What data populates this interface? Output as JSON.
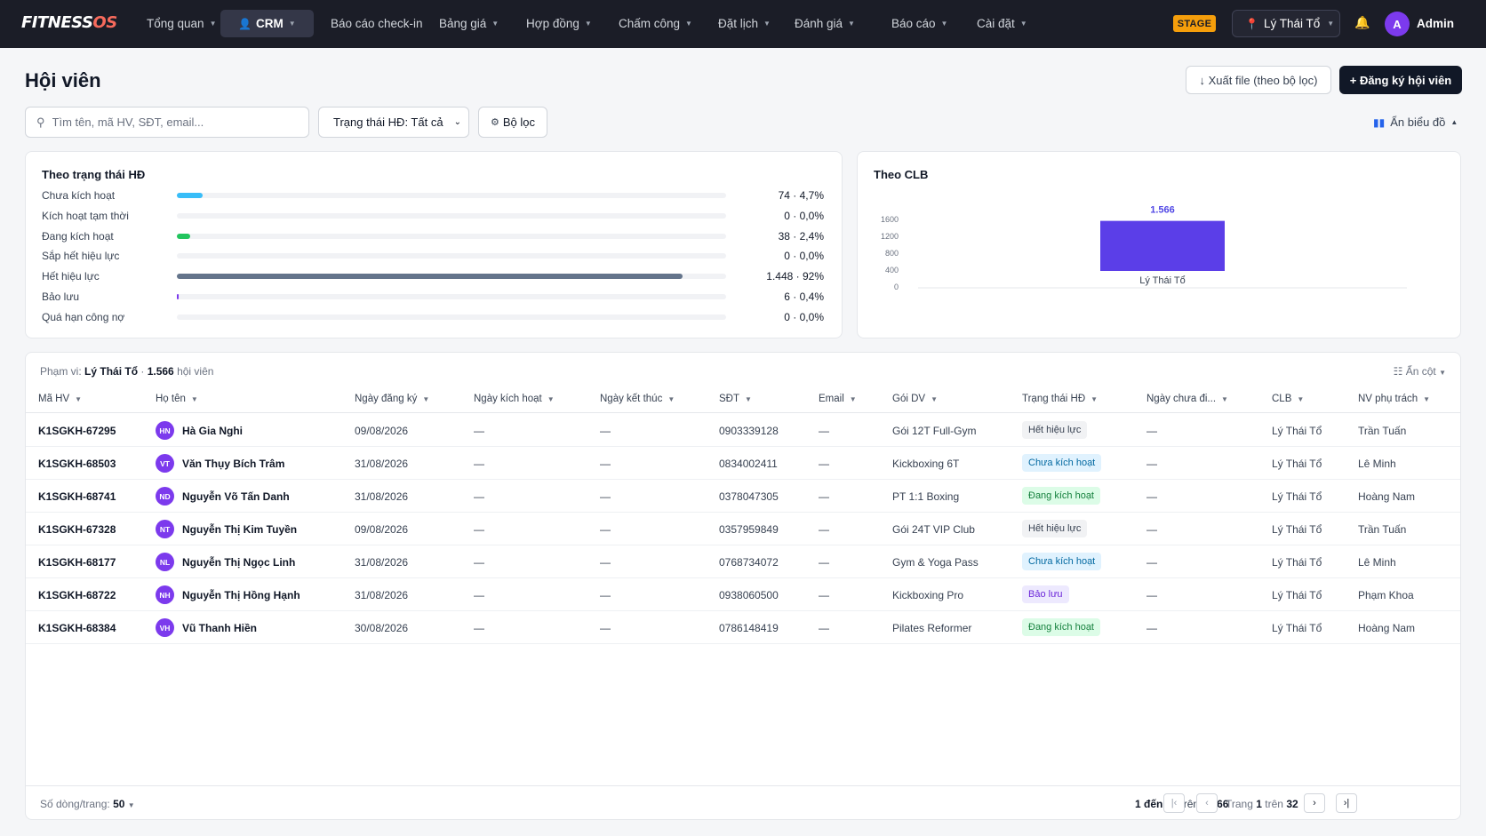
{
  "app": {
    "logo_main": "FITNESS",
    "logo_accent": "OS",
    "env_badge": "STAGE",
    "club_selector": "Lý Thái Tổ",
    "user_initial": "A",
    "user_name": "Admin"
  },
  "nav": [
    {
      "label": "Tổng quan",
      "caret": true,
      "active": false
    },
    {
      "label": "CRM",
      "caret": true,
      "active": true
    },
    {
      "label": "Báo cáo check-in",
      "caret": false,
      "active": false
    },
    {
      "label": "Bảng giá",
      "caret": true,
      "active": false
    },
    {
      "label": "Hợp đồng",
      "caret": true,
      "active": false
    },
    {
      "label": "Chấm công",
      "caret": true,
      "active": false
    },
    {
      "label": "Đặt lịch",
      "caret": true,
      "active": false
    },
    {
      "label": "Đánh giá",
      "caret": true,
      "active": false
    },
    {
      "label": "Báo cáo",
      "caret": true,
      "active": false
    },
    {
      "label": "Cài đặt",
      "caret": true,
      "active": false
    }
  ],
  "header": {
    "title": "Hội viên",
    "export_label": "↓ Xuất file (theo bộ lọc)",
    "register_label": "+ Đăng ký hội viên"
  },
  "filters": {
    "search_placeholder": "Tìm tên, mã HV, SĐT, email...",
    "status_select": "Trạng thái HĐ: Tất cả",
    "filter_label": "Bộ lọc",
    "toggle_chart_label": "Ẩn biểu đồ"
  },
  "status_panel": {
    "title": "Theo trạng thái HĐ",
    "rows": [
      {
        "label": "Chưa kích hoạt",
        "value": "74 · 4,7%",
        "fraction": 0.047,
        "color": "#38bdf8"
      },
      {
        "label": "Kích hoạt tạm thời",
        "value": "0 · 0,0%",
        "fraction": 0,
        "color": "#a78bfa"
      },
      {
        "label": "Đang kích hoạt",
        "value": "38 · 2,4%",
        "fraction": 0.024,
        "color": "#22c55e"
      },
      {
        "label": "Sắp hết hiệu lực",
        "value": "0 · 0,0%",
        "fraction": 0,
        "color": "#f59e0b"
      },
      {
        "label": "Hết hiệu lực",
        "value": "1.448 · 92%",
        "fraction": 0.92,
        "color": "#64748b"
      },
      {
        "label": "Bảo lưu",
        "value": "6 · 0,4%",
        "fraction": 0.004,
        "color": "#7c3aed"
      },
      {
        "label": "Quá hạn công nợ",
        "value": "0 · 0,0%",
        "fraction": 0,
        "color": "#ef4444"
      }
    ]
  },
  "chart_data": {
    "type": "bar",
    "title": "Theo CLB",
    "categories": [
      "Lý Thái Tổ"
    ],
    "values": [
      1566
    ],
    "data_labels": [
      "1.566"
    ],
    "yticks": [
      0,
      400,
      800,
      1200,
      1600
    ],
    "ylim": [
      0,
      1600
    ],
    "bar_color": "#5b3ee8",
    "grid": false
  },
  "table": {
    "scope_prefix": "Phạm vi:",
    "scope_club": "Lý Thái Tổ",
    "scope_count": "1.566",
    "scope_suffix": "hội viên",
    "hide_columns_label": "Ẩn cột",
    "columns": [
      "Mã HV",
      "Họ tên",
      "Ngày đăng ký",
      "Ngày kích hoạt",
      "Ngày kết thúc",
      "SĐT",
      "Email",
      "Gói DV",
      "Trạng thái HĐ",
      "Ngày chưa đi...",
      "CLB",
      "NV phụ trách"
    ],
    "rows": [
      {
        "code": "K1SGKH-67295",
        "initials": "HN",
        "name": "Hà Gia Nghi",
        "reg": "09/08/2026",
        "act": "—",
        "end": "—",
        "phone": "0903339128",
        "email": "—",
        "pkg": "Gói 12T Full-Gym",
        "status": "Hết hiệu lực",
        "status_kind": "expired",
        "idle": "—",
        "club": "Lý Thái Tổ",
        "staff": "Trần Tuấn"
      },
      {
        "code": "K1SGKH-68503",
        "initials": "VT",
        "name": "Văn Thụy Bích Trâm",
        "reg": "31/08/2026",
        "act": "—",
        "end": "—",
        "phone": "0834002411",
        "email": "—",
        "pkg": "Kickboxing 6T",
        "status": "Chưa kích hoạt",
        "status_kind": "inactive",
        "idle": "—",
        "club": "Lý Thái Tổ",
        "staff": "Lê Minh"
      },
      {
        "code": "K1SGKH-68741",
        "initials": "ND",
        "name": "Nguyễn Võ Tấn Danh",
        "reg": "31/08/2026",
        "act": "—",
        "end": "—",
        "phone": "0378047305",
        "email": "—",
        "pkg": "PT 1:1 Boxing",
        "status": "Đang kích hoạt",
        "status_kind": "active",
        "idle": "—",
        "club": "Lý Thái Tổ",
        "staff": "Hoàng Nam"
      },
      {
        "code": "K1SGKH-67328",
        "initials": "NT",
        "name": "Nguyễn Thị Kim Tuyền",
        "reg": "09/08/2026",
        "act": "—",
        "end": "—",
        "phone": "0357959849",
        "email": "—",
        "pkg": "Gói 24T VIP Club",
        "status": "Hết hiệu lực",
        "status_kind": "expired",
        "idle": "—",
        "club": "Lý Thái Tổ",
        "staff": "Trần Tuấn"
      },
      {
        "code": "K1SGKH-68177",
        "initials": "NL",
        "name": "Nguyễn Thị Ngọc Linh",
        "reg": "31/08/2026",
        "act": "—",
        "end": "—",
        "phone": "0768734072",
        "email": "—",
        "pkg": "Gym & Yoga Pass",
        "status": "Chưa kích hoạt",
        "status_kind": "inactive",
        "idle": "—",
        "club": "Lý Thái Tổ",
        "staff": "Lê Minh"
      },
      {
        "code": "K1SGKH-68722",
        "initials": "NH",
        "name": "Nguyễn Thị Hồng Hạnh",
        "reg": "31/08/2026",
        "act": "—",
        "end": "—",
        "phone": "0938060500",
        "email": "—",
        "pkg": "Kickboxing Pro",
        "status": "Bảo lưu",
        "status_kind": "reserved",
        "idle": "—",
        "club": "Lý Thái Tổ",
        "staff": "Phạm Khoa"
      },
      {
        "code": "K1SGKH-68384",
        "initials": "VH",
        "name": "Vũ Thanh Hiền",
        "reg": "30/08/2026",
        "act": "—",
        "end": "—",
        "phone": "0786148419",
        "email": "—",
        "pkg": "Pilates Reformer",
        "status": "Đang kích hoạt",
        "status_kind": "active",
        "idle": "—",
        "club": "Lý Thái Tổ",
        "staff": "Hoàng Nam"
      }
    ]
  },
  "pagination": {
    "rows_label": "Số dòng/trang:",
    "rows_value": "50",
    "range_prefix": "1 đến 50",
    "range_mid": "trên",
    "range_total": "1.566",
    "page_prefix": "Trang",
    "page_current": "1",
    "page_mid": "trên",
    "page_total": "32"
  },
  "badge_colors": {
    "expired": {
      "bg": "#f1f2f4",
      "fg": "#374151"
    },
    "inactive": {
      "bg": "#e0f2fe",
      "fg": "#0369a1"
    },
    "active": {
      "bg": "#dcfce7",
      "fg": "#15803d"
    },
    "reserved": {
      "bg": "#ede9fe",
      "fg": "#6d28d9"
    }
  }
}
